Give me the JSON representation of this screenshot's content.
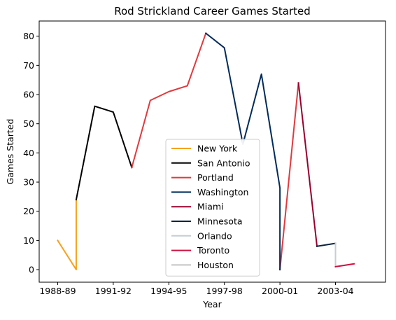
{
  "chart_data": {
    "type": "line",
    "title": "Rod Strickland Career Games Started",
    "xlabel": "Year",
    "ylabel": "Games Started",
    "xlim": [
      -1,
      17.7
    ],
    "ylim": [
      -4.3,
      85.2
    ],
    "x_ticks": [
      {
        "x": 0,
        "label": "1988-89"
      },
      {
        "x": 3,
        "label": "1991-92"
      },
      {
        "x": 6,
        "label": "1994-95"
      },
      {
        "x": 9,
        "label": "1997-98"
      },
      {
        "x": 12,
        "label": "2000-01"
      },
      {
        "x": 15,
        "label": "2003-04"
      }
    ],
    "y_ticks": [
      0,
      10,
      20,
      30,
      40,
      50,
      60,
      70,
      80
    ],
    "grid": false,
    "legend_position": "lower center",
    "series": [
      {
        "name": "New York",
        "color": "#F5A21E",
        "points": [
          [
            0,
            10
          ],
          [
            1,
            0
          ],
          [
            1,
            24
          ]
        ]
      },
      {
        "name": "San Antonio",
        "color": "#000000",
        "points": [
          [
            1,
            24
          ],
          [
            2,
            56
          ],
          [
            3,
            54
          ],
          [
            4,
            35
          ]
        ]
      },
      {
        "name": "Portland",
        "color": "#E03A3E",
        "points": [
          [
            4,
            35
          ],
          [
            5,
            58
          ],
          [
            6,
            61
          ],
          [
            7,
            63
          ],
          [
            8,
            81
          ]
        ]
      },
      {
        "name": "Washington",
        "color": "#002B5C",
        "points": [
          [
            8,
            81
          ],
          [
            9,
            76
          ],
          [
            10,
            43
          ],
          [
            11,
            67
          ],
          [
            12,
            28
          ],
          [
            12,
            0
          ]
        ]
      },
      {
        "name": "Miami",
        "color": "#98002E",
        "points": [
          [
            13,
            64
          ],
          [
            14,
            8
          ]
        ]
      },
      {
        "name": "Minnesota",
        "color": "#0C2340",
        "points": [
          [
            14,
            8
          ],
          [
            15,
            9
          ]
        ]
      },
      {
        "name": "Orlando",
        "color": "#C4CED4",
        "points": [
          [
            15,
            9
          ],
          [
            15,
            1
          ]
        ]
      },
      {
        "name": "Toronto",
        "color": "#CE1141",
        "points": [
          [
            15,
            1
          ],
          [
            16,
            2
          ]
        ]
      },
      {
        "name": "Houston",
        "color": "#C4C4C4",
        "points": [
          [
            10,
            45
          ],
          [
            10,
            43
          ]
        ]
      }
    ],
    "extra_segments": [
      {
        "color": "#E03A3E",
        "points": [
          [
            12,
            0
          ],
          [
            13,
            64
          ]
        ]
      }
    ]
  }
}
